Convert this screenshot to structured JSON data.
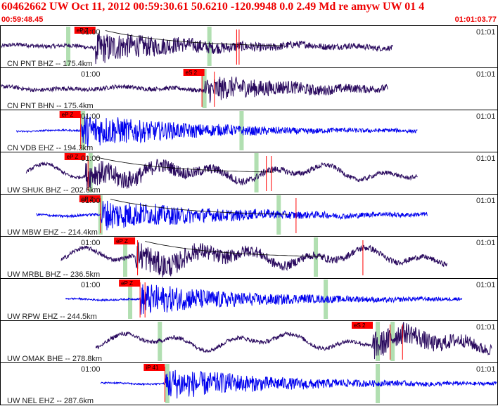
{
  "header": {
    "title": "60462662 UW Oct 11, 2012 00:59:30.61    50.6210 -120.9948  0.0 2.49 Md re amyw UW 01    4",
    "start_time": "00:59:48.45",
    "end_time": "01:01:03.77"
  },
  "colors": {
    "header_text": "#ee0000",
    "trace_dark": "#2a0a5e",
    "trace_blue": "#0000ee",
    "pick": "#ff0000",
    "window": "#a8dca8"
  },
  "time_labels": {
    "left": "01:00",
    "right": "01:01"
  },
  "traces": [
    {
      "label": "CN PNT BHZ -- 175.4km",
      "color": "dark",
      "pick": "eP Z",
      "start": 0.0,
      "end": 0.79,
      "onset": 0.19,
      "amp": 0.35,
      "noise": 0.05,
      "kind": "burst",
      "greens": [
        0.135,
        0.42
      ],
      "redlines": [
        0.475,
        0.48
      ],
      "curve": true,
      "left_label": "01:00",
      "right_label": "01:01"
    },
    {
      "label": "CN PNT BHN -- 175.4km",
      "color": "dark",
      "pick": "eS 2",
      "start": 0.0,
      "end": 0.78,
      "onset": 0.41,
      "amp": 0.28,
      "noise": 0.05,
      "kind": "burst",
      "greens": [
        0.41
      ],
      "redlines": [
        0.405,
        0.43
      ],
      "curve": false,
      "left_label": "01:00",
      "right_label": "01:01"
    },
    {
      "label": "CN VDB EHZ -- 194.3km",
      "color": "blue",
      "pick": "eP Z",
      "start": 0.03,
      "end": 0.84,
      "onset": 0.16,
      "amp": 0.42,
      "noise": 0.02,
      "kind": "hf",
      "greens": [
        0.165,
        0.485
      ],
      "redlines": [
        0.16
      ],
      "curve": false,
      "left_label": "01:00",
      "right_label": "01:01"
    },
    {
      "label": "UW SHUK BHZ -- 202.6km",
      "color": "dark",
      "pick": "eP Z",
      "start": 0.05,
      "end": 0.84,
      "onset": 0.17,
      "amp": 0.3,
      "noise": 0.04,
      "kind": "swell",
      "greens": [
        0.18,
        0.515
      ],
      "redlines": [
        0.175,
        0.535,
        0.545
      ],
      "curve": true,
      "left_label": "01:00",
      "right_label": "01:01"
    },
    {
      "label": "UW MBW EHZ -- 214.4km",
      "color": "blue",
      "pick": "eP Z",
      "start": 0.07,
      "end": 0.86,
      "onset": 0.2,
      "amp": 0.36,
      "noise": 0.03,
      "kind": "hf",
      "greens": [
        0.2,
        0.56
      ],
      "redlines": [
        0.2,
        0.595
      ],
      "curve": true,
      "left_label": "01:00",
      "right_label": "01:01"
    },
    {
      "label": "UW MRBL BHZ -- 236.5km",
      "color": "dark",
      "pick": "eP Z",
      "start": 0.12,
      "end": 0.9,
      "onset": 0.27,
      "amp": 0.32,
      "noise": 0.05,
      "kind": "swell",
      "greens": [
        0.25,
        0.635
      ],
      "redlines": [
        0.275,
        0.73
      ],
      "curve": true,
      "left_label": "01:00",
      "right_label": "01:01"
    },
    {
      "label": "UW RPW EHZ -- 244.5km",
      "color": "blue",
      "pick": "eP Z",
      "start": 0.13,
      "end": 0.93,
      "onset": 0.28,
      "amp": 0.38,
      "noise": 0.02,
      "kind": "hf",
      "greens": [
        0.26,
        0.655
      ],
      "redlines": [
        0.28,
        0.29
      ],
      "curve": false,
      "left_label": "01:00",
      "right_label": "01:01"
    },
    {
      "label": "UW OMAK BHE -- 278.8km",
      "color": "dark",
      "pick": "eS 2",
      "start": 0.19,
      "end": 0.99,
      "onset": 0.75,
      "amp": 0.3,
      "noise": 0.05,
      "kind": "swell",
      "greens": [
        0.32,
        0.76,
        0.79
      ],
      "redlines": [
        0.785,
        0.81
      ],
      "curve": false,
      "left_label": "",
      "right_label": "01:01"
    },
    {
      "label": "UW NEL EHZ -- 287.6km",
      "color": "blue",
      "pick": "iP 41",
      "start": 0.2,
      "end": 1.0,
      "onset": 0.33,
      "amp": 0.38,
      "noise": 0.02,
      "kind": "hf",
      "greens": [
        0.335,
        0.76
      ],
      "redlines": [
        0.33
      ],
      "curve": false,
      "left_label": "01:00",
      "right_label": "01:01"
    }
  ]
}
